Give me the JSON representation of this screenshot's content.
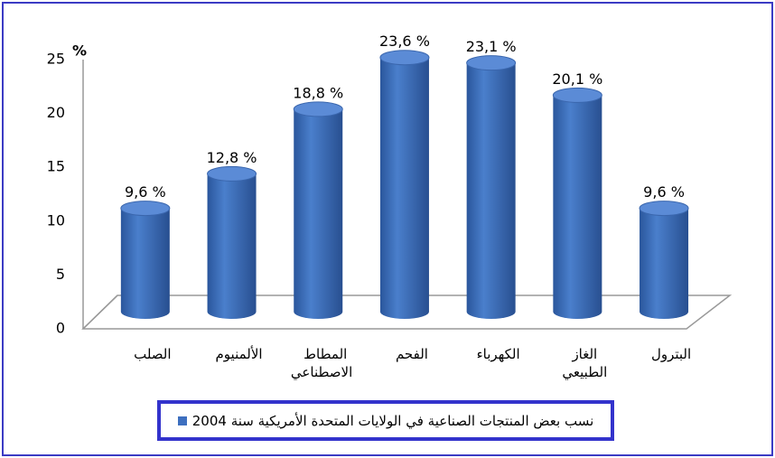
{
  "chart_data": {
    "type": "bar",
    "y_label": "%",
    "categories": [
      "الصلب",
      "الألمنيوم",
      "المطاط الاصطناعي",
      "الفحم",
      "الكهرباء",
      "الغاز الطبيعي",
      "البترول"
    ],
    "series": [
      {
        "name": "نسب بعض المنتجات الصناعية في الولايات المتحدة الأمريكية سنة 2004",
        "color": "#3d6fbf",
        "values": [
          9.6,
          12.8,
          18.8,
          23.6,
          23.1,
          20.1,
          9.6
        ],
        "value_labels": [
          "9,6 %",
          "12,8 %",
          "18,8 %",
          "23,6 %",
          "23,1 %",
          "20,1 %",
          "9,6 %"
        ]
      }
    ],
    "ylim": [
      0,
      25
    ],
    "yticks": [
      0,
      5,
      10,
      15,
      20,
      25
    ],
    "grid": false
  }
}
